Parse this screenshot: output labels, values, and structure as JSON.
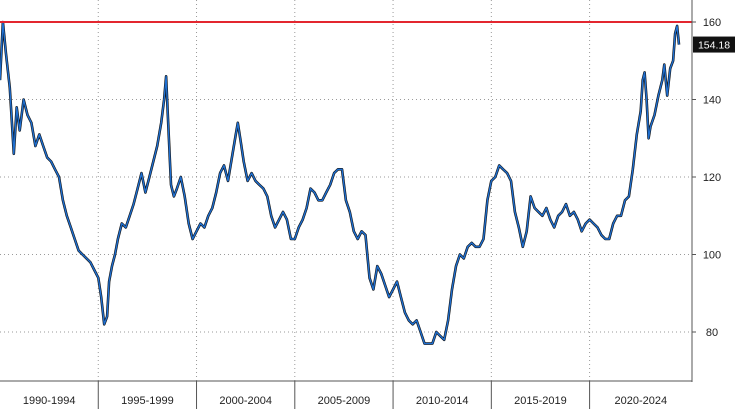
{
  "chart_data": {
    "type": "line",
    "title": "",
    "xlabel": "",
    "ylabel": "",
    "x_range": [
      1990,
      2024.6
    ],
    "ylim": [
      70,
      162
    ],
    "y_ticks": [
      80,
      100,
      120,
      140,
      160
    ],
    "y_tick_labels": [
      "80",
      "100",
      "120",
      "140",
      "160"
    ],
    "x_categories": [
      "1990-1994",
      "1995-1999",
      "2000-2004",
      "2005-2009",
      "2010-2014",
      "2015-2019",
      "2020-2024"
    ],
    "grid": true,
    "legend": "none",
    "reference_line": {
      "value": 160,
      "color": "#e3262f"
    },
    "last_value": {
      "value": 154.18,
      "label": "154.18"
    },
    "series": [
      {
        "color": "#1f6fd0",
        "points": [
          [
            1990.0,
            145
          ],
          [
            1990.15,
            160
          ],
          [
            1990.3,
            152
          ],
          [
            1990.5,
            143
          ],
          [
            1990.7,
            126
          ],
          [
            1990.85,
            138
          ],
          [
            1991.0,
            132
          ],
          [
            1991.2,
            140
          ],
          [
            1991.4,
            136
          ],
          [
            1991.6,
            134
          ],
          [
            1991.8,
            128
          ],
          [
            1992.0,
            131
          ],
          [
            1992.2,
            128
          ],
          [
            1992.4,
            125
          ],
          [
            1992.6,
            124
          ],
          [
            1992.8,
            122
          ],
          [
            1993.0,
            120
          ],
          [
            1993.2,
            114
          ],
          [
            1993.4,
            110
          ],
          [
            1993.6,
            107
          ],
          [
            1993.8,
            104
          ],
          [
            1994.0,
            101
          ],
          [
            1994.2,
            100
          ],
          [
            1994.4,
            99
          ],
          [
            1994.6,
            98
          ],
          [
            1994.8,
            96
          ],
          [
            1995.0,
            94
          ],
          [
            1995.15,
            89
          ],
          [
            1995.3,
            82
          ],
          [
            1995.45,
            84
          ],
          [
            1995.55,
            93
          ],
          [
            1995.7,
            97
          ],
          [
            1995.85,
            100
          ],
          [
            1996.0,
            104
          ],
          [
            1996.2,
            108
          ],
          [
            1996.4,
            107
          ],
          [
            1996.6,
            110
          ],
          [
            1996.8,
            113
          ],
          [
            1997.0,
            117
          ],
          [
            1997.2,
            121
          ],
          [
            1997.4,
            116
          ],
          [
            1997.6,
            120
          ],
          [
            1997.8,
            124
          ],
          [
            1998.0,
            128
          ],
          [
            1998.2,
            134
          ],
          [
            1998.35,
            140
          ],
          [
            1998.45,
            146
          ],
          [
            1998.55,
            135
          ],
          [
            1998.7,
            118
          ],
          [
            1998.85,
            115
          ],
          [
            1999.0,
            117
          ],
          [
            1999.2,
            120
          ],
          [
            1999.4,
            115
          ],
          [
            1999.6,
            108
          ],
          [
            1999.8,
            104
          ],
          [
            2000.0,
            106
          ],
          [
            2000.2,
            108
          ],
          [
            2000.4,
            107
          ],
          [
            2000.6,
            110
          ],
          [
            2000.8,
            112
          ],
          [
            2001.0,
            116
          ],
          [
            2001.2,
            121
          ],
          [
            2001.4,
            123
          ],
          [
            2001.6,
            119
          ],
          [
            2001.8,
            125
          ],
          [
            2002.0,
            131
          ],
          [
            2002.1,
            134
          ],
          [
            2002.25,
            129
          ],
          [
            2002.4,
            124
          ],
          [
            2002.6,
            119
          ],
          [
            2002.8,
            121
          ],
          [
            2003.0,
            119
          ],
          [
            2003.2,
            118
          ],
          [
            2003.4,
            117
          ],
          [
            2003.6,
            115
          ],
          [
            2003.8,
            110
          ],
          [
            2004.0,
            107
          ],
          [
            2004.2,
            109
          ],
          [
            2004.4,
            111
          ],
          [
            2004.6,
            109
          ],
          [
            2004.8,
            104
          ],
          [
            2005.0,
            104
          ],
          [
            2005.2,
            107
          ],
          [
            2005.4,
            109
          ],
          [
            2005.6,
            112
          ],
          [
            2005.8,
            117
          ],
          [
            2006.0,
            116
          ],
          [
            2006.2,
            114
          ],
          [
            2006.4,
            114
          ],
          [
            2006.6,
            116
          ],
          [
            2006.8,
            118
          ],
          [
            2007.0,
            121
          ],
          [
            2007.2,
            122
          ],
          [
            2007.4,
            122
          ],
          [
            2007.6,
            114
          ],
          [
            2007.8,
            111
          ],
          [
            2008.0,
            106
          ],
          [
            2008.2,
            104
          ],
          [
            2008.4,
            106
          ],
          [
            2008.6,
            105
          ],
          [
            2008.8,
            94
          ],
          [
            2009.0,
            91
          ],
          [
            2009.2,
            97
          ],
          [
            2009.4,
            95
          ],
          [
            2009.6,
            92
          ],
          [
            2009.8,
            89
          ],
          [
            2010.0,
            91
          ],
          [
            2010.2,
            93
          ],
          [
            2010.4,
            89
          ],
          [
            2010.6,
            85
          ],
          [
            2010.8,
            83
          ],
          [
            2011.0,
            82
          ],
          [
            2011.2,
            83
          ],
          [
            2011.4,
            80
          ],
          [
            2011.6,
            77
          ],
          [
            2011.8,
            77
          ],
          [
            2012.0,
            77
          ],
          [
            2012.2,
            80
          ],
          [
            2012.4,
            79
          ],
          [
            2012.6,
            78
          ],
          [
            2012.8,
            83
          ],
          [
            2013.0,
            91
          ],
          [
            2013.2,
            97
          ],
          [
            2013.4,
            100
          ],
          [
            2013.6,
            99
          ],
          [
            2013.8,
            102
          ],
          [
            2014.0,
            103
          ],
          [
            2014.2,
            102
          ],
          [
            2014.4,
            102
          ],
          [
            2014.6,
            104
          ],
          [
            2014.8,
            114
          ],
          [
            2015.0,
            119
          ],
          [
            2015.2,
            120
          ],
          [
            2015.4,
            123
          ],
          [
            2015.6,
            122
          ],
          [
            2015.8,
            121
          ],
          [
            2016.0,
            119
          ],
          [
            2016.2,
            111
          ],
          [
            2016.4,
            107
          ],
          [
            2016.6,
            102
          ],
          [
            2016.8,
            106
          ],
          [
            2017.0,
            115
          ],
          [
            2017.2,
            112
          ],
          [
            2017.4,
            111
          ],
          [
            2017.6,
            110
          ],
          [
            2017.8,
            112
          ],
          [
            2018.0,
            109
          ],
          [
            2018.2,
            107
          ],
          [
            2018.4,
            110
          ],
          [
            2018.6,
            111
          ],
          [
            2018.8,
            113
          ],
          [
            2019.0,
            110
          ],
          [
            2019.2,
            111
          ],
          [
            2019.4,
            109
          ],
          [
            2019.6,
            106
          ],
          [
            2019.8,
            108
          ],
          [
            2020.0,
            109
          ],
          [
            2020.2,
            108
          ],
          [
            2020.4,
            107
          ],
          [
            2020.6,
            105
          ],
          [
            2020.8,
            104
          ],
          [
            2021.0,
            104
          ],
          [
            2021.2,
            108
          ],
          [
            2021.4,
            110
          ],
          [
            2021.6,
            110
          ],
          [
            2021.8,
            114
          ],
          [
            2022.0,
            115
          ],
          [
            2022.2,
            122
          ],
          [
            2022.4,
            131
          ],
          [
            2022.6,
            137
          ],
          [
            2022.7,
            145
          ],
          [
            2022.8,
            147
          ],
          [
            2022.9,
            140
          ],
          [
            2023.0,
            130
          ],
          [
            2023.1,
            133
          ],
          [
            2023.3,
            136
          ],
          [
            2023.5,
            141
          ],
          [
            2023.7,
            145
          ],
          [
            2023.8,
            149
          ],
          [
            2023.95,
            141
          ],
          [
            2024.1,
            148
          ],
          [
            2024.25,
            150
          ],
          [
            2024.35,
            157
          ],
          [
            2024.45,
            159
          ],
          [
            2024.55,
            154.18
          ]
        ]
      }
    ]
  }
}
